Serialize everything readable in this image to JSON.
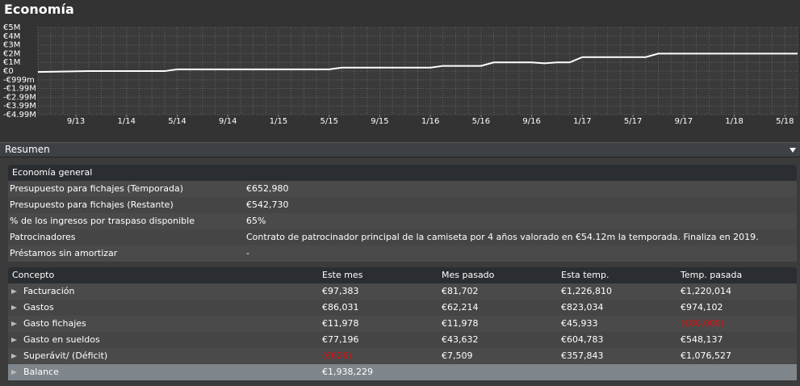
{
  "title": "Economía",
  "chart_data": {
    "type": "line",
    "x": [
      "2013-06",
      "2013-10",
      "2014-04",
      "2014-05",
      "2015-05",
      "2015-06",
      "2016-01",
      "2016-02",
      "2016-05",
      "2016-06",
      "2016-09",
      "2016-10",
      "2016-11",
      "2016-12",
      "2017-01",
      "2017-06",
      "2017-07",
      "2018-06"
    ],
    "series": [
      {
        "color": "#ffffff",
        "values": [
          -100000,
          0,
          0,
          200000,
          200000,
          400000,
          400000,
          600000,
          600000,
          1000000,
          1000000,
          900000,
          1000000,
          1000000,
          1600000,
          1600000,
          2000000,
          2000000
        ]
      }
    ],
    "xlim": [
      "2013-06",
      "2018-06"
    ],
    "xticks": [
      {
        "value": "2013-09",
        "label": "9/13"
      },
      {
        "value": "2014-01",
        "label": "1/14"
      },
      {
        "value": "2014-05",
        "label": "5/14"
      },
      {
        "value": "2014-09",
        "label": "9/14"
      },
      {
        "value": "2015-01",
        "label": "1/15"
      },
      {
        "value": "2015-05",
        "label": "5/15"
      },
      {
        "value": "2015-09",
        "label": "9/15"
      },
      {
        "value": "2016-01",
        "label": "1/16"
      },
      {
        "value": "2016-05",
        "label": "5/16"
      },
      {
        "value": "2016-09",
        "label": "9/16"
      },
      {
        "value": "2017-01",
        "label": "1/17"
      },
      {
        "value": "2017-05",
        "label": "5/17"
      },
      {
        "value": "2017-09",
        "label": "9/17"
      },
      {
        "value": "2018-01",
        "label": "1/18"
      },
      {
        "value": "2018-05",
        "label": "5/18"
      }
    ],
    "ylim": [
      -4990000,
      5000000
    ],
    "yticks": [
      {
        "value": 5000000,
        "label": "€5M"
      },
      {
        "value": 4000000,
        "label": "€4M"
      },
      {
        "value": 3000000,
        "label": "€3M"
      },
      {
        "value": 2000000,
        "label": "€2M"
      },
      {
        "value": 1000000,
        "label": "€1M"
      },
      {
        "value": 0,
        "label": "€0"
      },
      {
        "value": -999000,
        "label": "-€999m"
      },
      {
        "value": -1990000,
        "label": "-€1.99M"
      },
      {
        "value": -2990000,
        "label": "-€2.99M"
      },
      {
        "value": -3990000,
        "label": "-€3.99M"
      },
      {
        "value": -4990000,
        "label": "-€4.99M"
      }
    ],
    "grid": true
  },
  "summary": {
    "title": "Resumen"
  },
  "general": {
    "title": "Economía general",
    "rows": [
      [
        "Presupuesto para fichajes (Temporada)",
        "€652,980"
      ],
      [
        "Presupuesto para fichajes (Restante)",
        "€542,730"
      ],
      [
        "% de los ingresos por traspaso disponible",
        "65%"
      ],
      [
        "Patrocinadores",
        "Contrato de patrocinador principal de la camiseta por 4 años valorado en €54.12m la temporada. Finaliza en 2019."
      ],
      [
        "Préstamos sin amortizar",
        "-"
      ]
    ]
  },
  "finance": {
    "header": [
      "Concepto",
      "Este mes",
      "Mes pasado",
      "Esta temp.",
      "Temp. pasada"
    ],
    "rows": [
      [
        "Facturación",
        "€97,383",
        "€81,702",
        "€1,226,810",
        "€1,220,014"
      ],
      [
        "Gastos",
        "€86,031",
        "€62,214",
        "€823,034",
        "€974,102"
      ],
      [
        "Gasto fichajes",
        "€11,978",
        "€11,978",
        "€45,933",
        "(€80,000)"
      ],
      [
        "Gasto en sueldos",
        "€77,196",
        "€43,632",
        "€604,783",
        "€548,137"
      ],
      [
        "Superávit/ (Déficit)",
        "(€626)",
        "€7,509",
        "€357,843",
        "€1,076,527"
      ],
      [
        "Balance",
        "€1,938,229"
      ]
    ]
  }
}
